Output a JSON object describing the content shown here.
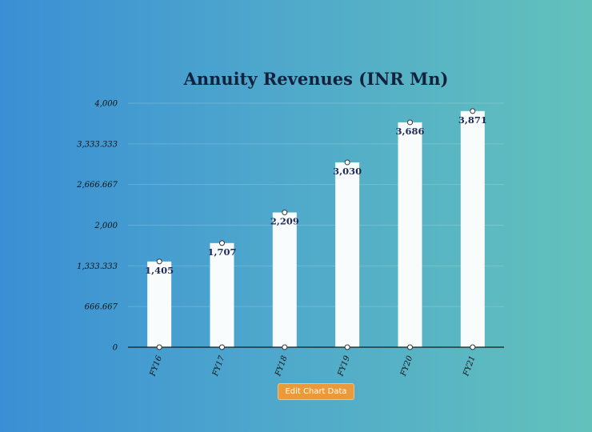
{
  "chart_data": {
    "type": "bar",
    "title": "Annuity Revenues (INR Mn)",
    "xlabel": "",
    "ylabel": "",
    "categories": [
      "FY16",
      "FY17",
      "FY18",
      "FY19",
      "FY20",
      "FY21"
    ],
    "values": [
      1405,
      1707,
      2209,
      3030,
      3686,
      3871
    ],
    "value_labels": [
      "1,405",
      "1,707",
      "2,209",
      "3,030",
      "3,686",
      "3,871"
    ],
    "ylim": [
      0,
      4000
    ],
    "yticks": [
      "0",
      "666.667",
      "1,333.333",
      "2,000",
      "2,666.667",
      "3,333.333",
      "4,000"
    ],
    "grid": true,
    "colors": {
      "bar": "#f8fcfd",
      "label": "#1f2a5c",
      "title": "#14213d",
      "button": "#ea9a3a"
    }
  },
  "controls": {
    "edit_button_label": "Edit Chart Data"
  }
}
